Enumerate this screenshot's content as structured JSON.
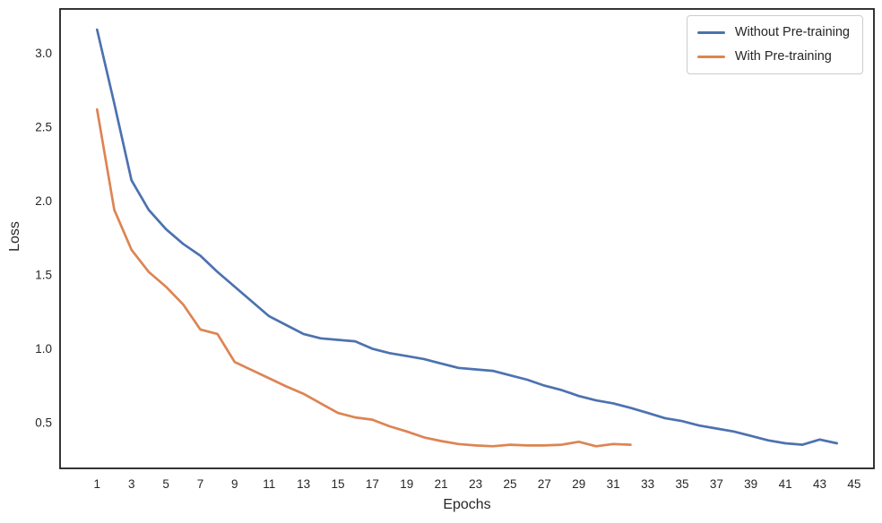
{
  "chart_data": {
    "type": "line",
    "title": "",
    "xlabel": "Epochs",
    "ylabel": "Loss",
    "grid": false,
    "legend_position": "upper right",
    "xlim": [
      -1.15,
      46.15
    ],
    "ylim": [
      0.19,
      3.3
    ],
    "x_ticks": [
      1,
      3,
      5,
      7,
      9,
      11,
      13,
      15,
      17,
      19,
      21,
      23,
      25,
      27,
      29,
      31,
      33,
      35,
      37,
      39,
      41,
      43,
      45
    ],
    "y_ticks": [
      0.5,
      1.0,
      1.5,
      2.0,
      2.5,
      3.0
    ],
    "y_tick_labels": [
      "0.5",
      "1.0",
      "1.5",
      "2.0",
      "2.5",
      "3.0"
    ],
    "frame_color": "#1f1f1f",
    "series": [
      {
        "name": "Without Pre-training",
        "color": "#4C72B0",
        "epochs": [
          1,
          2,
          3,
          4,
          5,
          6,
          7,
          8,
          9,
          10,
          11,
          12,
          13,
          14,
          15,
          16,
          17,
          18,
          19,
          20,
          21,
          22,
          23,
          24,
          25,
          26,
          27,
          28,
          29,
          30,
          31,
          32,
          33,
          34,
          35,
          36,
          37,
          38,
          39,
          40,
          41,
          42,
          43,
          44
        ],
        "values": [
          3.16,
          2.66,
          2.14,
          1.94,
          1.81,
          1.71,
          1.63,
          1.52,
          1.42,
          1.32,
          1.22,
          1.16,
          1.1,
          1.07,
          1.06,
          1.05,
          1.0,
          0.97,
          0.95,
          0.93,
          0.9,
          0.87,
          0.86,
          0.85,
          0.82,
          0.79,
          0.75,
          0.72,
          0.68,
          0.65,
          0.63,
          0.6,
          0.565,
          0.53,
          0.51,
          0.48,
          0.46,
          0.44,
          0.41,
          0.38,
          0.36,
          0.35,
          0.385,
          0.36
        ]
      },
      {
        "name": "With Pre-training",
        "color": "#DD8452",
        "epochs": [
          1,
          2,
          3,
          4,
          5,
          6,
          7,
          8,
          9,
          10,
          11,
          12,
          13,
          14,
          15,
          16,
          17,
          18,
          19,
          20,
          21,
          22,
          23,
          24,
          25,
          26,
          27,
          28,
          29,
          30,
          31,
          32
        ],
        "values": [
          2.62,
          1.94,
          1.67,
          1.52,
          1.42,
          1.3,
          1.13,
          1.1,
          0.91,
          0.855,
          0.8,
          0.745,
          0.695,
          0.63,
          0.565,
          0.535,
          0.52,
          0.475,
          0.44,
          0.4,
          0.375,
          0.355,
          0.345,
          0.34,
          0.35,
          0.345,
          0.345,
          0.35,
          0.37,
          0.34,
          0.355,
          0.35
        ]
      }
    ]
  }
}
